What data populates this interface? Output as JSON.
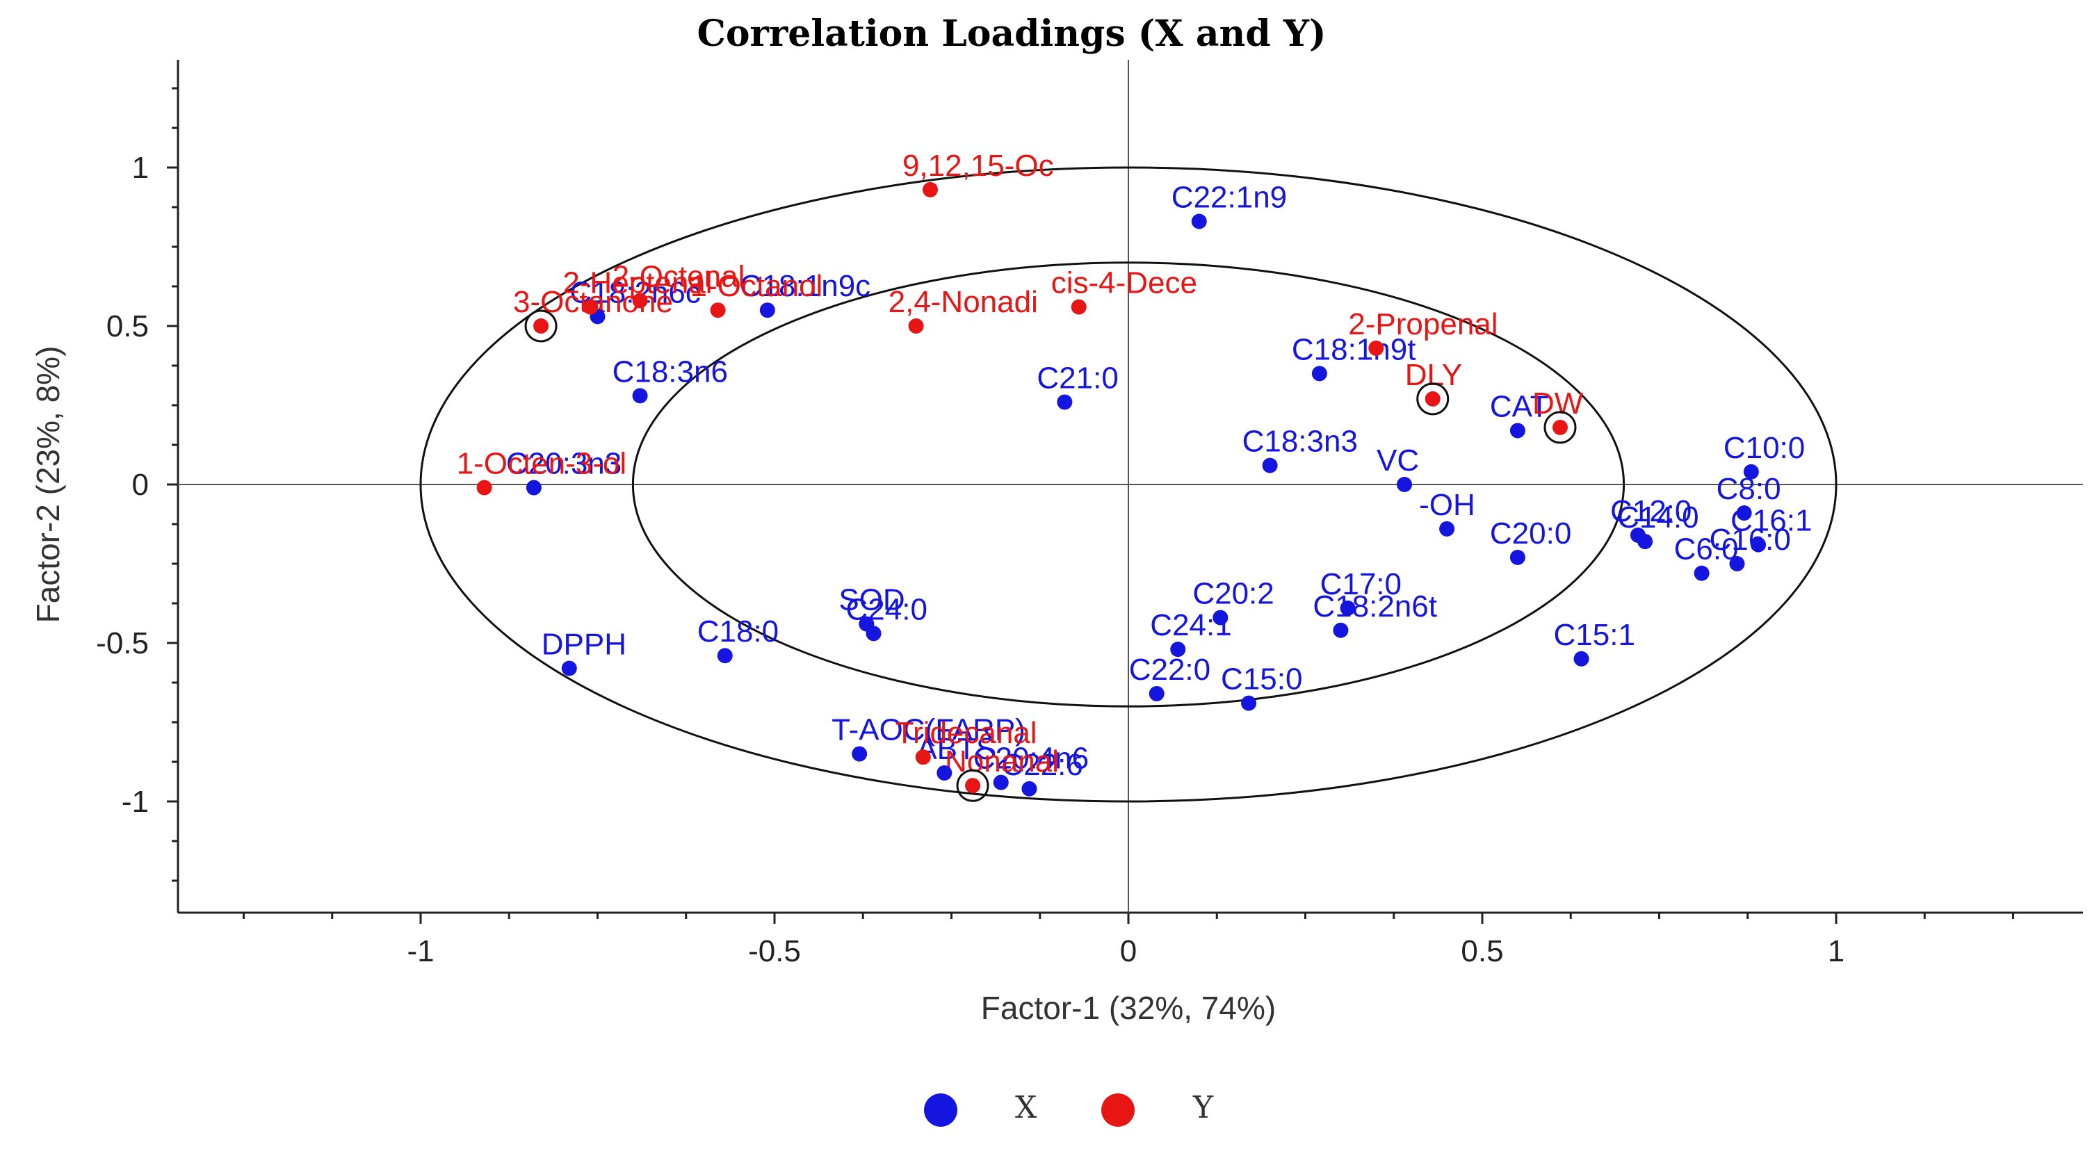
{
  "chart_data": {
    "type": "scatter",
    "title": "Correlation Loadings (X and Y)",
    "xlabel": "Factor-1 (32%, 74%)",
    "ylabel": "Factor-2 (23%, 8%)",
    "xlim": [
      -1.3,
      1.35
    ],
    "ylim": [
      -1.3,
      1.33
    ],
    "x_ticks": [
      -1,
      -0.5,
      0,
      0.5,
      1
    ],
    "y_ticks": [
      -1,
      -0.5,
      0,
      0.5,
      1
    ],
    "x_tick_labels": [
      "-1",
      "-0.5",
      "0",
      "0.5",
      "1"
    ],
    "y_tick_labels": [
      "-1",
      "-0.5",
      "0",
      "0.5",
      "1"
    ],
    "ellipses": [
      {
        "radius": 1.0
      },
      {
        "radius": 0.7
      }
    ],
    "legend": [
      {
        "name": "X",
        "color": "#1515e0"
      },
      {
        "name": "Y",
        "color": "#e81515"
      }
    ],
    "series": [
      {
        "name": "X",
        "color": "#1515e0",
        "points": [
          {
            "label": "C22:1n9",
            "x": 0.1,
            "y": 0.83
          },
          {
            "label": "C18:1n9c",
            "x": -0.51,
            "y": 0.55
          },
          {
            "label": "C18:2n6c",
            "x": -0.75,
            "y": 0.53
          },
          {
            "label": "C21:0",
            "x": -0.09,
            "y": 0.26
          },
          {
            "label": "C18:1n9t",
            "x": 0.27,
            "y": 0.35
          },
          {
            "label": "C20:3n3",
            "x": -0.84,
            "y": -0.01
          },
          {
            "label": "C18:3n3",
            "x": 0.2,
            "y": 0.06
          },
          {
            "label": "CAT",
            "x": 0.55,
            "y": 0.17
          },
          {
            "label": "VC",
            "x": 0.39,
            "y": 0.0
          },
          {
            "label": "-OH",
            "x": 0.45,
            "y": -0.14
          },
          {
            "label": "C20:0",
            "x": 0.55,
            "y": -0.23
          },
          {
            "label": "C10:0",
            "x": 0.88,
            "y": 0.04
          },
          {
            "label": "C12:0",
            "x": 0.72,
            "y": -0.16
          },
          {
            "label": "C8:0",
            "x": 0.87,
            "y": -0.09
          },
          {
            "label": "C14:0",
            "x": 0.73,
            "y": -0.18
          },
          {
            "label": "C16:1",
            "x": 0.89,
            "y": -0.19
          },
          {
            "label": "C6:0",
            "x": 0.81,
            "y": -0.28
          },
          {
            "label": "C16:0",
            "x": 0.86,
            "y": -0.25
          },
          {
            "label": "C15:1",
            "x": 0.64,
            "y": -0.55
          },
          {
            "label": "C17:0",
            "x": 0.31,
            "y": -0.39
          },
          {
            "label": "C18:2n6t",
            "x": 0.3,
            "y": -0.46
          },
          {
            "label": "C20:2",
            "x": 0.13,
            "y": -0.42
          },
          {
            "label": "C24:1",
            "x": 0.07,
            "y": -0.52
          },
          {
            "label": "C22:0",
            "x": 0.04,
            "y": -0.66
          },
          {
            "label": "C15:0",
            "x": 0.17,
            "y": -0.69
          },
          {
            "label": "C24:0",
            "x": -0.36,
            "y": -0.47
          },
          {
            "label": "SOD",
            "x": -0.37,
            "y": -0.44
          },
          {
            "label": "C18:0",
            "x": -0.57,
            "y": -0.54
          },
          {
            "label": "DPPH",
            "x": -0.79,
            "y": -0.58
          },
          {
            "label": "T-AOC(FARP)",
            "x": -0.38,
            "y": -0.85
          },
          {
            "label": "ABTS",
            "x": -0.26,
            "y": -0.91
          },
          {
            "label": "C20:4n6",
            "x": -0.18,
            "y": -0.94
          },
          {
            "label": "C22:6",
            "x": -0.14,
            "y": -0.96
          },
          {
            "label": "C18:3n6",
            "x": -0.69,
            "y": 0.28
          }
        ]
      },
      {
        "name": "Y",
        "color": "#e81515",
        "points": [
          {
            "label": "9,12,15-Oc",
            "x": -0.28,
            "y": 0.93
          },
          {
            "label": "2-Octenal",
            "x": -0.69,
            "y": 0.58
          },
          {
            "label": "2-Heptenal",
            "x": -0.76,
            "y": 0.56
          },
          {
            "label": "cis-4-Dece",
            "x": -0.07,
            "y": 0.56
          },
          {
            "label": "1-Octanol",
            "x": -0.58,
            "y": 0.55
          },
          {
            "label": "2,4-Nonadi",
            "x": -0.3,
            "y": 0.5
          },
          {
            "label": "3-Octanone",
            "x": -0.83,
            "y": 0.5
          },
          {
            "label": "2-Propenal",
            "x": 0.35,
            "y": 0.43
          },
          {
            "label": "DLY",
            "x": 0.43,
            "y": 0.27
          },
          {
            "label": "DW",
            "x": 0.61,
            "y": 0.18
          },
          {
            "label": "1-Octen-3-ol",
            "x": -0.91,
            "y": -0.01
          },
          {
            "label": "Tridecanal",
            "x": -0.29,
            "y": -0.86
          },
          {
            "label": "Nonanal",
            "x": -0.22,
            "y": -0.95
          }
        ]
      }
    ],
    "circled_points": [
      "3-Octanone",
      "DLY",
      "DW",
      "Nonanal"
    ]
  }
}
